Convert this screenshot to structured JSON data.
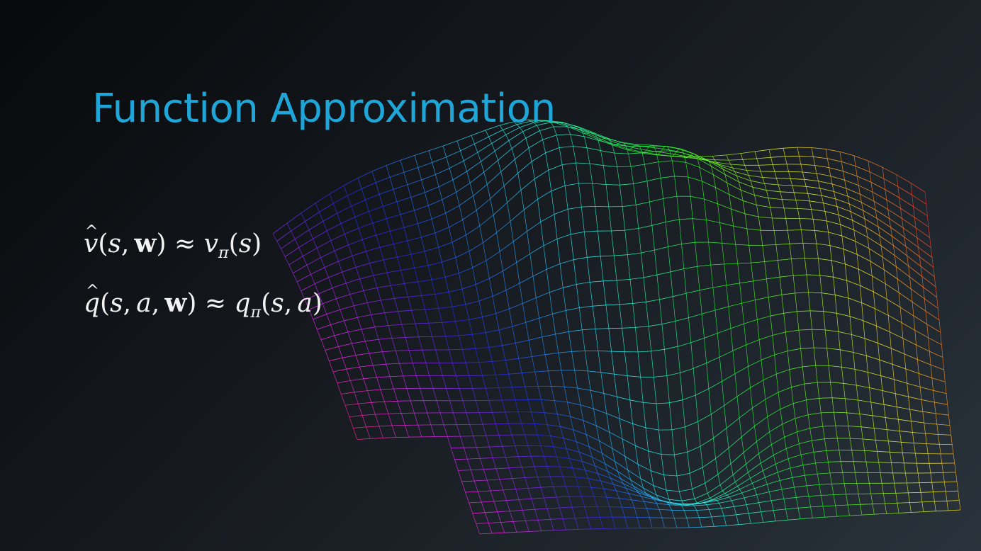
{
  "slide": {
    "title": "Function Approximation",
    "title_color": "#1fa6d8",
    "equations": [
      {
        "id": "value-approx",
        "latex": "\\hat{v}(s,\\mathbf{w}) \\approx v_\\pi(s)",
        "display": "v̂(s, w) ≈ vπ(s)"
      },
      {
        "id": "action-value-approx",
        "latex": "\\hat{q}(s,a,\\mathbf{w}) \\approx q_\\pi(s,a)",
        "display": "q̂(s, a, w) ≈ qπ(s, a)"
      }
    ],
    "background_graphic": {
      "description_icon": "wireframe-surface-graphic",
      "colors": [
        "#3a2cff",
        "#8b2cff",
        "#ff2cd6",
        "#ff3a1a",
        "#ff8a00",
        "#ffe000",
        "#7dff2c",
        "#19e3c8"
      ]
    }
  }
}
